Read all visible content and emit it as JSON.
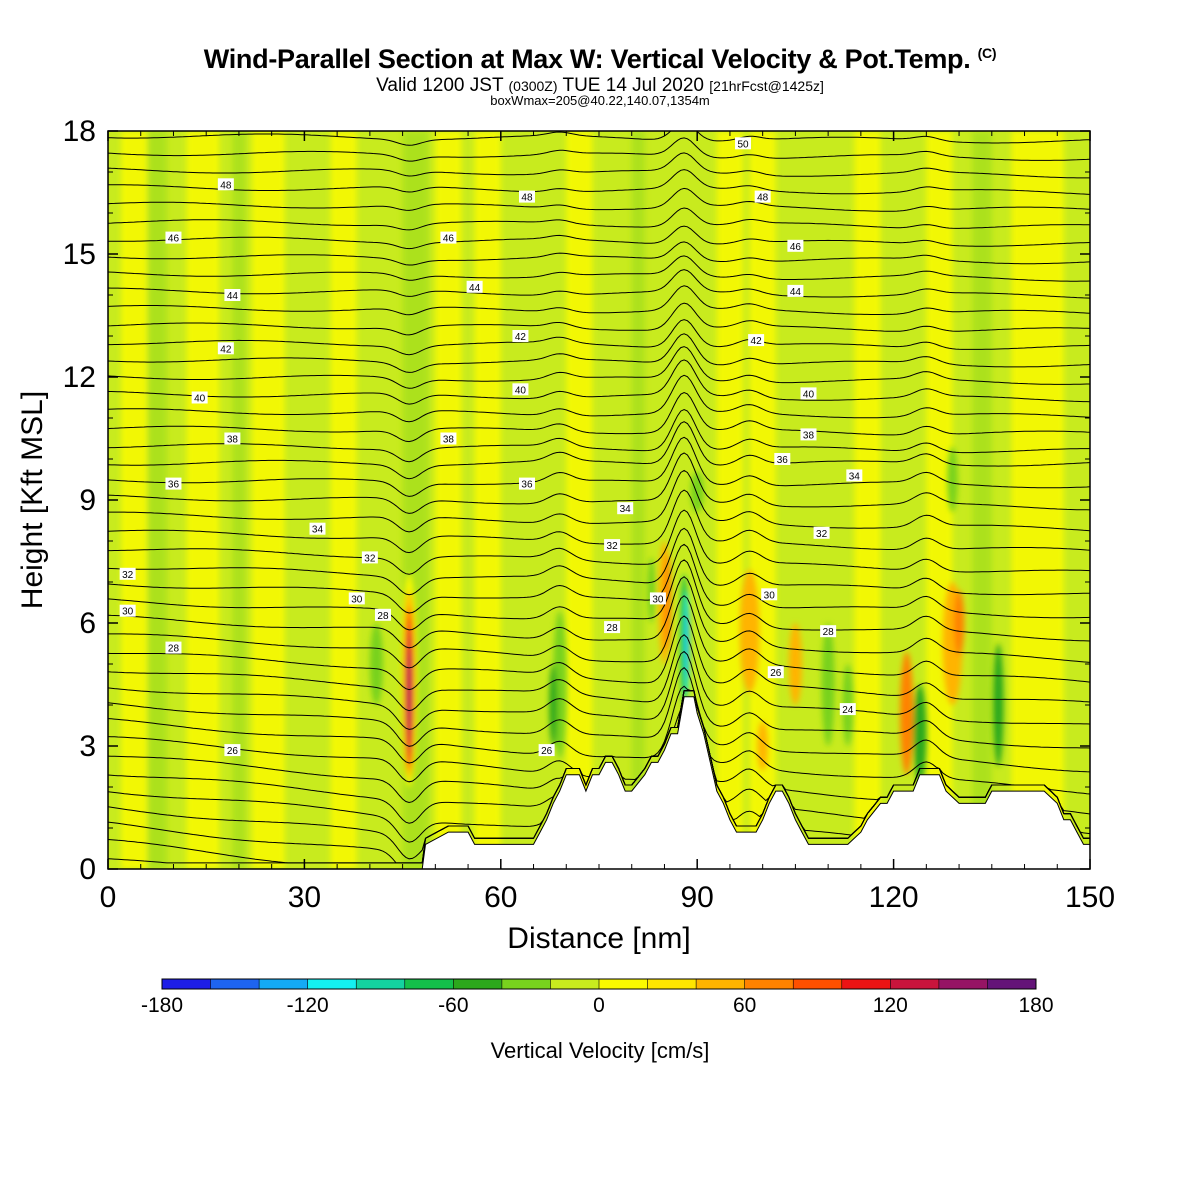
{
  "header": {
    "title_main": "Wind-Parallel Section at Max W: Vertical Velocity & Pot.Temp.",
    "title_mark": "(C)",
    "valid_a": "Valid 1200 JST",
    "valid_b": "(0300Z)",
    "valid_c": "TUE 14 Jul 2020",
    "valid_d": "[21hrFcst@1425z]",
    "subtitle": "boxWmax=205@40.22,140.07,1354m"
  },
  "chart_data": {
    "type": "heatmap",
    "xlabel": "Distance [nm]",
    "ylabel": "Height [Kft MSL]",
    "xlim": [
      0,
      150
    ],
    "ylim": [
      0,
      18
    ],
    "xticks": [
      0,
      30,
      60,
      90,
      120,
      150
    ],
    "yticks": [
      0,
      3,
      6,
      9,
      12,
      15,
      18
    ],
    "colorbar": {
      "label": "Vertical Velocity [cm/s]",
      "range": [
        -180,
        180
      ],
      "ticks": [
        -180,
        -120,
        -60,
        0,
        60,
        120,
        180
      ],
      "colors": [
        "#1e1ee6",
        "#1e64f0",
        "#14aaf5",
        "#14f0f0",
        "#14d2a0",
        "#14c04a",
        "#2ca81c",
        "#78d21e",
        "#c8eb1e",
        "#fafa00",
        "#ffe600",
        "#ffb400",
        "#ff8200",
        "#ff5000",
        "#eb1414",
        "#c8143c",
        "#961464",
        "#641478"
      ]
    },
    "theta_labels": [
      {
        "x": 97,
        "y": 17.7,
        "v": "50"
      },
      {
        "x": 18,
        "y": 16.7,
        "v": "48"
      },
      {
        "x": 64,
        "y": 16.4,
        "v": "48"
      },
      {
        "x": 100,
        "y": 16.4,
        "v": "48"
      },
      {
        "x": 10,
        "y": 15.4,
        "v": "46"
      },
      {
        "x": 52,
        "y": 15.4,
        "v": "46"
      },
      {
        "x": 105,
        "y": 15.2,
        "v": "46"
      },
      {
        "x": 19,
        "y": 14.0,
        "v": "44"
      },
      {
        "x": 56,
        "y": 14.2,
        "v": "44"
      },
      {
        "x": 105,
        "y": 14.1,
        "v": "44"
      },
      {
        "x": 18,
        "y": 12.7,
        "v": "42"
      },
      {
        "x": 63,
        "y": 13.0,
        "v": "42"
      },
      {
        "x": 99,
        "y": 12.9,
        "v": "42"
      },
      {
        "x": 14,
        "y": 11.5,
        "v": "40"
      },
      {
        "x": 63,
        "y": 11.7,
        "v": "40"
      },
      {
        "x": 107,
        "y": 11.6,
        "v": "40"
      },
      {
        "x": 19,
        "y": 10.5,
        "v": "38"
      },
      {
        "x": 52,
        "y": 10.5,
        "v": "38"
      },
      {
        "x": 107,
        "y": 10.6,
        "v": "38"
      },
      {
        "x": 10,
        "y": 9.4,
        "v": "36"
      },
      {
        "x": 64,
        "y": 9.4,
        "v": "36"
      },
      {
        "x": 103,
        "y": 10.0,
        "v": "36"
      },
      {
        "x": 32,
        "y": 8.3,
        "v": "34"
      },
      {
        "x": 79,
        "y": 8.8,
        "v": "34"
      },
      {
        "x": 114,
        "y": 9.6,
        "v": "34"
      },
      {
        "x": 3,
        "y": 7.2,
        "v": "32"
      },
      {
        "x": 40,
        "y": 7.6,
        "v": "32"
      },
      {
        "x": 77,
        "y": 7.9,
        "v": "32"
      },
      {
        "x": 109,
        "y": 8.2,
        "v": "32"
      },
      {
        "x": 3,
        "y": 6.3,
        "v": "30"
      },
      {
        "x": 38,
        "y": 6.6,
        "v": "30"
      },
      {
        "x": 84,
        "y": 6.6,
        "v": "30"
      },
      {
        "x": 101,
        "y": 6.7,
        "v": "30"
      },
      {
        "x": 10,
        "y": 5.4,
        "v": "28"
      },
      {
        "x": 42,
        "y": 6.2,
        "v": "28"
      },
      {
        "x": 77,
        "y": 5.9,
        "v": "28"
      },
      {
        "x": 110,
        "y": 5.8,
        "v": "28"
      },
      {
        "x": 102,
        "y": 4.8,
        "v": "26"
      },
      {
        "x": 113,
        "y": 3.9,
        "v": "24"
      },
      {
        "x": 19,
        "y": 2.9,
        "v": "26"
      },
      {
        "x": 67,
        "y": 2.9,
        "v": "26"
      }
    ],
    "terrain": {
      "x": [
        0,
        48,
        48.5,
        52,
        55,
        56,
        60,
        65,
        66,
        67,
        68,
        69,
        70,
        72,
        73,
        74,
        75,
        76,
        77,
        78,
        79,
        80,
        82,
        83,
        84,
        85,
        86,
        87,
        88,
        89.5,
        90,
        91,
        92,
        93,
        94,
        95,
        96,
        97,
        98,
        99,
        100,
        101,
        102,
        103,
        104,
        105,
        106,
        107,
        108,
        110,
        113,
        115,
        116,
        118,
        119,
        120,
        121,
        123,
        124,
        125,
        126,
        127,
        128,
        130,
        131,
        134,
        135,
        137,
        143,
        145,
        146,
        147,
        148,
        149,
        150
      ],
      "y": [
        0,
        0,
        0.6,
        0.9,
        0.9,
        0.6,
        0.6,
        0.6,
        0.9,
        1.2,
        1.6,
        1.9,
        2.3,
        2.3,
        1.9,
        2.3,
        2.3,
        2.6,
        2.6,
        2.3,
        1.9,
        1.9,
        2.3,
        2.6,
        2.6,
        2.9,
        3.3,
        3.3,
        4.2,
        4.2,
        3.8,
        3.3,
        2.6,
        1.9,
        1.6,
        1.2,
        0.9,
        0.9,
        0.9,
        0.9,
        1.2,
        1.6,
        1.9,
        1.9,
        1.6,
        1.2,
        0.9,
        0.6,
        0.6,
        0.6,
        0.6,
        0.9,
        1.2,
        1.6,
        1.6,
        1.9,
        1.9,
        1.9,
        2.3,
        2.3,
        2.3,
        2.3,
        1.9,
        1.6,
        1.6,
        1.6,
        1.9,
        1.9,
        1.9,
        1.6,
        1.2,
        1.2,
        0.9,
        0.6,
        0.6
      ]
    }
  }
}
